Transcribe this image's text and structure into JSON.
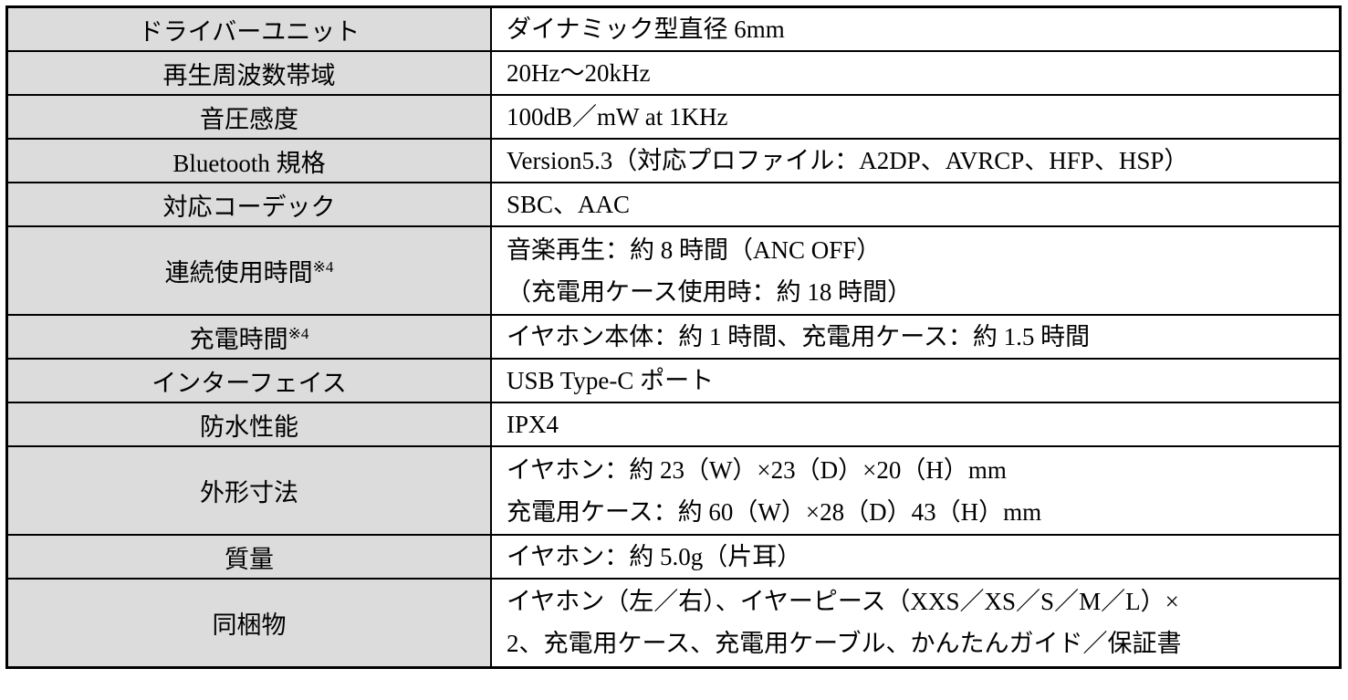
{
  "table": {
    "colors": {
      "label_bg": "#dcdcdc",
      "value_bg": "#ffffff",
      "border": "#000000",
      "text": "#000000"
    },
    "rows": [
      {
        "label": "ドライバーユニット",
        "value_lines": [
          "ダイナミック型直径 6mm"
        ]
      },
      {
        "label": "再生周波数帯域",
        "value_lines": [
          "20Hz～20kHz"
        ]
      },
      {
        "label": "音圧感度",
        "value_lines": [
          "100dB／mW at 1KHz"
        ]
      },
      {
        "label": "Bluetooth 規格",
        "value_lines": [
          "Version5.3（対応プロファイル：A2DP、AVRCP、HFP、HSP）"
        ]
      },
      {
        "label": "対応コーデック",
        "value_lines": [
          "SBC、AAC"
        ]
      },
      {
        "label": "連続使用時間",
        "label_sup": "※4",
        "value_lines": [
          "音楽再生：約 8 時間（ANC OFF）",
          "（充電用ケース使用時：約 18 時間）"
        ]
      },
      {
        "label": "充電時間",
        "label_sup": "※4",
        "value_lines": [
          "イヤホン本体：約 1 時間、充電用ケース：約 1.5 時間"
        ]
      },
      {
        "label": "インターフェイス",
        "value_lines": [
          "USB Type-C ポート"
        ]
      },
      {
        "label": "防水性能",
        "value_lines": [
          "IPX4"
        ]
      },
      {
        "label": "外形寸法",
        "value_lines": [
          "イヤホン：約 23（W）×23（D）×20（H）mm",
          "充電用ケース：約 60（W）×28（D）43（H）mm"
        ]
      },
      {
        "label": "質量",
        "value_lines": [
          "イヤホン：約 5.0g（片耳）"
        ]
      },
      {
        "label": "同梱物",
        "value_lines": [
          "イヤホン（左／右）、イヤーピース（XXS／XS／S／M／L）×",
          "2、充電用ケース、充電用ケーブル、かんたんガイド／保証書"
        ]
      }
    ]
  }
}
